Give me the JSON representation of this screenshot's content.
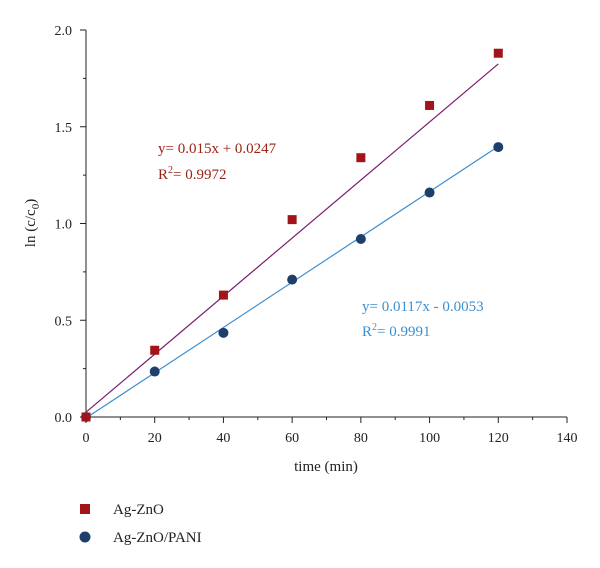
{
  "chart_data": {
    "type": "scatter",
    "xlabel": "time (min)",
    "ylabel_main": "ln (c/c",
    "ylabel_sub": "0",
    "ylabel_close": ")",
    "xlim": [
      0,
      140
    ],
    "ylim": [
      0,
      2.0
    ],
    "x_ticks": [
      "0",
      "20",
      "40",
      "60",
      "80",
      "100",
      "120",
      "140"
    ],
    "y_ticks": [
      "0.0",
      "0.5",
      "1.0",
      "1.5",
      "2.0"
    ],
    "grid": false,
    "legend_position": "bottom-left",
    "series": [
      {
        "name": "Ag-ZnO",
        "marker": "square",
        "color": "#a0141a",
        "line_color": "#7b1f6e",
        "x": [
          0,
          20,
          40,
          60,
          80,
          100,
          120
        ],
        "y": [
          0.0,
          0.345,
          0.63,
          1.02,
          1.34,
          1.61,
          1.88
        ],
        "fit": {
          "slope": 0.015,
          "intercept": 0.0247,
          "x_range": [
            0,
            120
          ]
        },
        "equation": "y= 0.015x + 0.0247",
        "r2_label": "R",
        "r2_sup": "2",
        "r2_value": "= 0.9972"
      },
      {
        "name": "Ag-ZnO/PANI",
        "marker": "circle",
        "color": "#1f3f6b",
        "line_color": "#3c8fd0",
        "x": [
          0,
          20,
          40,
          60,
          80,
          100,
          120
        ],
        "y": [
          0.0,
          0.235,
          0.435,
          0.71,
          0.92,
          1.16,
          1.395
        ],
        "fit": {
          "slope": 0.0117,
          "intercept": -0.0053,
          "x_range": [
            0,
            120
          ]
        },
        "equation": "y= 0.0117x - 0.0053",
        "r2_label": "R",
        "r2_sup": "2",
        "r2_value": "= 0.9991"
      }
    ]
  },
  "colors": {
    "ag_zno_text": "#9b2418",
    "pani_text": "#3c8fd0",
    "axis": "#222222"
  }
}
